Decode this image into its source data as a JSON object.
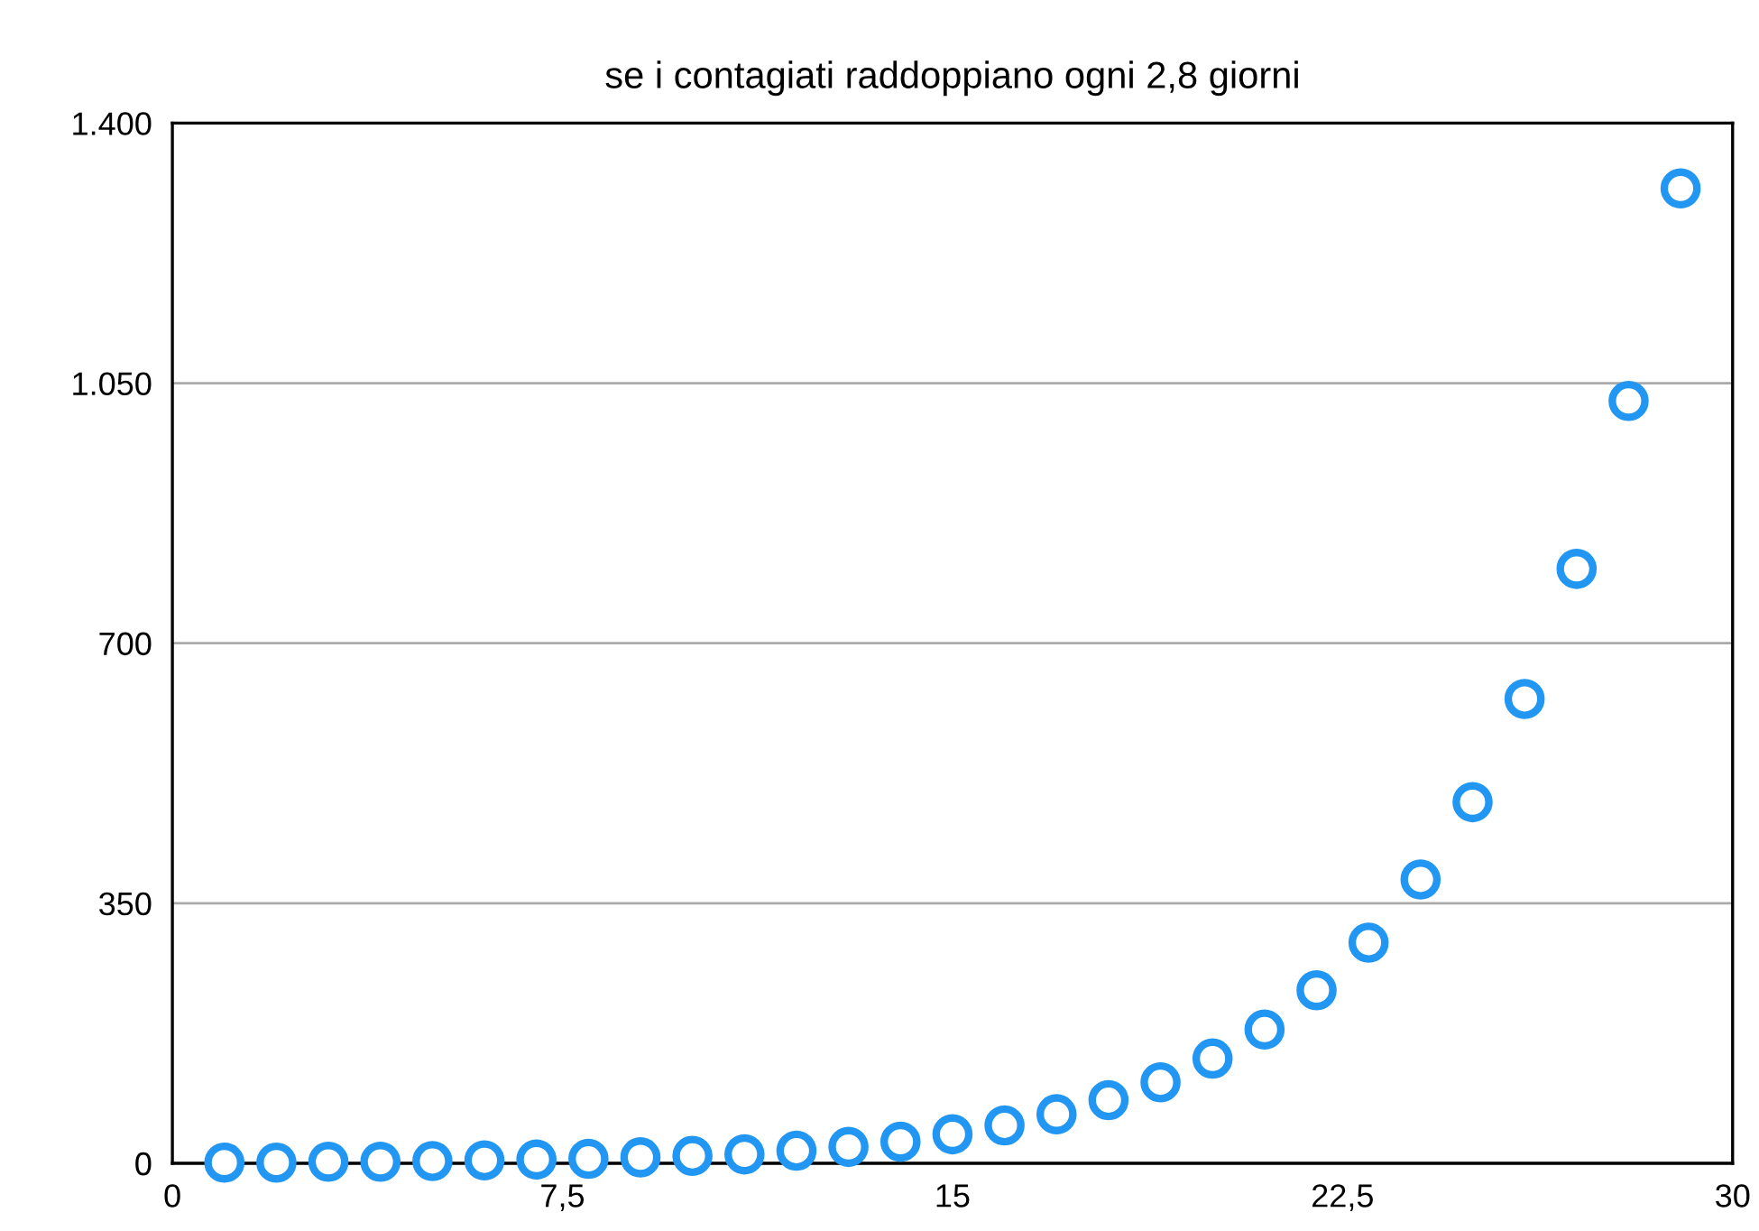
{
  "chart_data": {
    "type": "scatter",
    "title": "se i contagiati raddoppiano ogni 2,8 giorni",
    "x": [
      1,
      2,
      3,
      4,
      5,
      6,
      7,
      8,
      9,
      10,
      11,
      12,
      13,
      14,
      15,
      16,
      17,
      18,
      19,
      20,
      21,
      22,
      23,
      24,
      25,
      26,
      27,
      28,
      29
    ],
    "series": [
      {
        "color": "#2196f3",
        "values": [
          1,
          1,
          2,
          2,
          3,
          4,
          5,
          6,
          8,
          10,
          12,
          17,
          22,
          29,
          39,
          51,
          66,
          85,
          109,
          141,
          180,
          233,
          297,
          382,
          486,
          625,
          800,
          1026,
          1312
        ]
      }
    ],
    "xlim": [
      0,
      30
    ],
    "xticks": [
      0,
      {
        "value": 7.5,
        "label": "7,5"
      },
      15,
      {
        "value": 22.5,
        "label": "22,5"
      },
      30
    ],
    "ylim": [
      0,
      1400
    ],
    "yticks": [
      0,
      350,
      700,
      {
        "value": 1050,
        "label": "1.050"
      },
      {
        "value": 1400,
        "label": "1.400"
      }
    ],
    "grid": "y",
    "marker": "circle",
    "legend": false
  }
}
